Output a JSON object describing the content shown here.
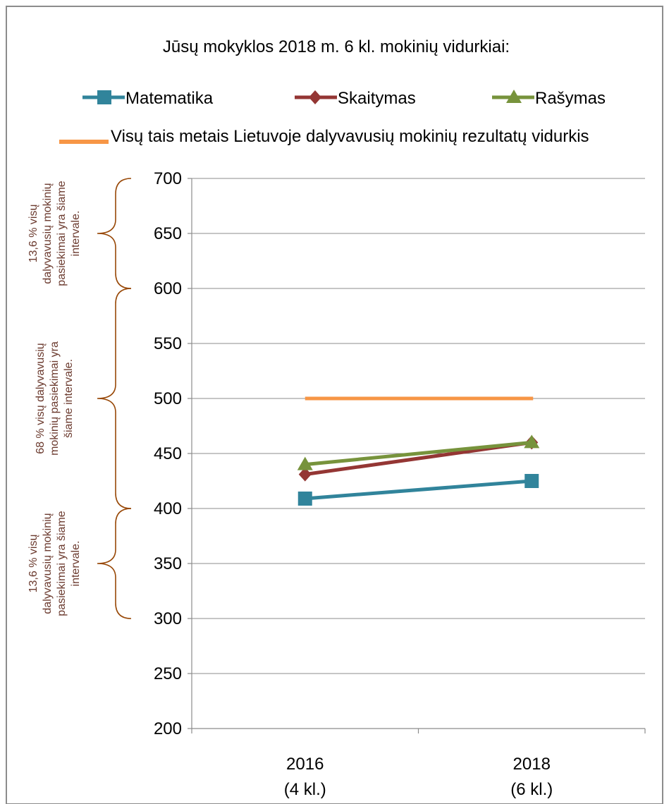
{
  "chart_data": {
    "type": "line",
    "title": "Jūsų mokyklos 2018 m. 6 kl. mokinių vidurkiai:",
    "categories": [
      "2016\n(4 kl.)",
      "2018\n(6 kl.)"
    ],
    "category_lines": [
      [
        "2016",
        "(4 kl.)"
      ],
      [
        "2018",
        "(6 kl.)"
      ]
    ],
    "series": [
      {
        "name": "Matematika",
        "values": [
          409,
          425
        ],
        "color": "#31849b",
        "marker": "square"
      },
      {
        "name": "Skaitymas",
        "values": [
          431,
          460
        ],
        "color": "#943634",
        "marker": "diamond"
      },
      {
        "name": "Rašymas",
        "values": [
          440,
          460
        ],
        "color": "#77933c",
        "marker": "triangle"
      }
    ],
    "reference_line": {
      "name": "Visų tais metais Lietuvoje dalyvavusių mokinių rezultatų vidurkis",
      "value": 500,
      "color": "#f79646"
    },
    "ylim": [
      200,
      700
    ],
    "yticks": [
      200,
      250,
      300,
      350,
      400,
      450,
      500,
      550,
      600,
      650,
      700
    ],
    "grid": true,
    "legend_position": "top",
    "brackets": [
      {
        "from": 600,
        "to": 700,
        "lines": [
          "13,6 % visų",
          "dalyvavusių mokinių",
          "pasiekimai yra šiame",
          "intervale."
        ]
      },
      {
        "from": 400,
        "to": 600,
        "lines": [
          "68 % visų dalyvavusių",
          "mokinių pasiekimai yra",
          "šiame intervale."
        ]
      },
      {
        "from": 300,
        "to": 400,
        "lines": [
          "13,6 % visų",
          "dalyvavusių mokinių",
          "pasiekimai yra šiame",
          "intervale."
        ]
      }
    ],
    "bracket_color": "#984807"
  }
}
